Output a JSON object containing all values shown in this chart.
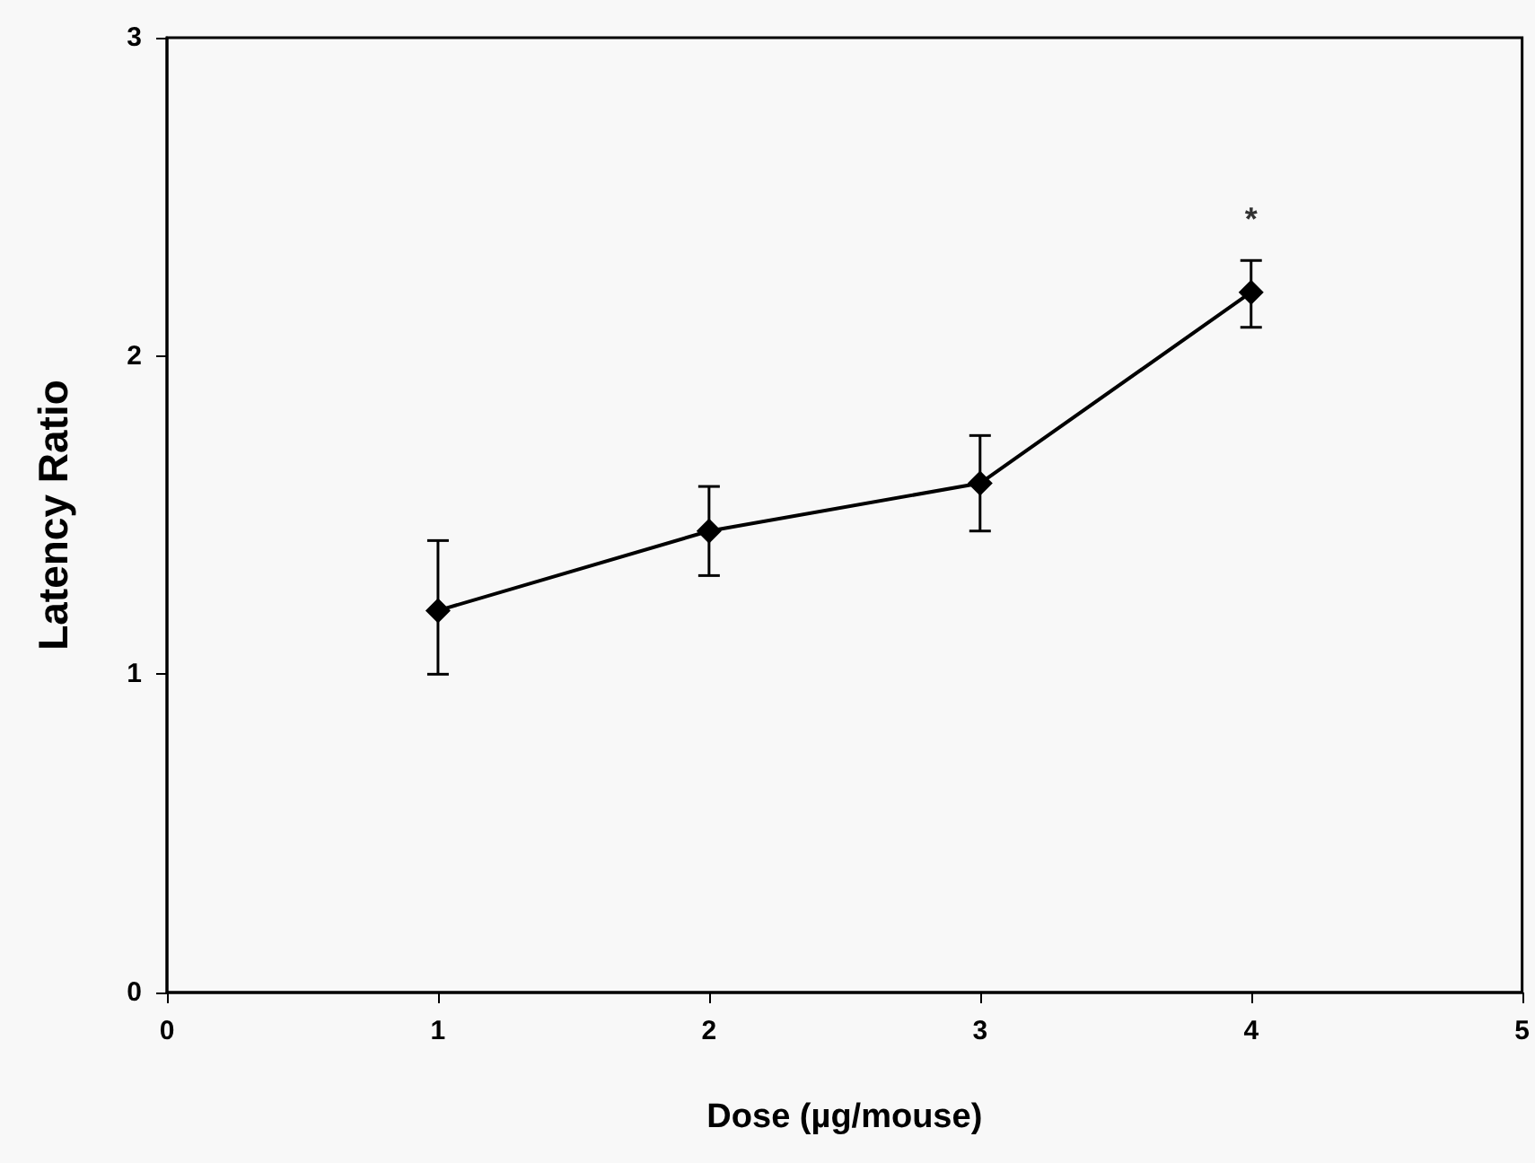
{
  "chart_data": {
    "type": "line",
    "xlabel": "Dose (µg/mouse)",
    "ylabel": "Latency Ratio",
    "x": [
      1,
      2,
      3,
      4
    ],
    "series": [
      {
        "color": "#000000",
        "values": [
          1.2,
          1.45,
          1.6,
          2.2
        ],
        "errors": [
          [
            1.0,
            1.42
          ],
          [
            1.31,
            1.59
          ],
          [
            1.45,
            1.75
          ],
          [
            2.09,
            2.3
          ]
        ]
      }
    ],
    "xlim": [
      0,
      5
    ],
    "xticks": [
      0,
      1,
      2,
      3,
      4,
      5
    ],
    "ylim": [
      0,
      3
    ],
    "yticks": [
      0,
      1,
      2,
      3
    ],
    "marker": "diamond",
    "line_style": "solid",
    "grid": false,
    "annotations": [
      "*"
    ]
  }
}
